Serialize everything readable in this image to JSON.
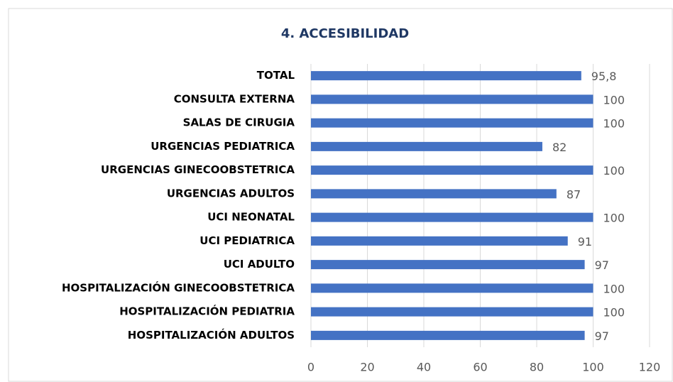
{
  "chart_data": {
    "type": "bar",
    "orientation": "horizontal",
    "title": "4.  ACCESIBILIDAD",
    "categories": [
      "TOTAL",
      "CONSULTA EXTERNA",
      "SALAS DE CIRUGIA",
      "URGENCIAS PEDIATRICA",
      "URGENCIAS GINECOOBSTETRICA",
      "URGENCIAS ADULTOS",
      "UCI NEONATAL",
      "UCI PEDIATRICA",
      "UCI ADULTO",
      "HOSPITALIZACIÓN GINECOOBSTETRICA",
      "HOSPITALIZACIÓN PEDIATRIA",
      "HOSPITALIZACIÓN ADULTOS"
    ],
    "values": [
      95.8,
      100,
      100,
      82,
      100,
      87,
      100,
      91,
      97,
      100,
      100,
      97
    ],
    "value_labels": [
      "95,8",
      "100",
      "100",
      "82",
      "100",
      "87",
      "100",
      "91",
      "97",
      "100",
      "100",
      "97"
    ],
    "color": "#4472c4",
    "xlim": [
      0,
      120
    ],
    "xticks": [
      0,
      20,
      40,
      60,
      80,
      100,
      120
    ],
    "grid": true
  }
}
